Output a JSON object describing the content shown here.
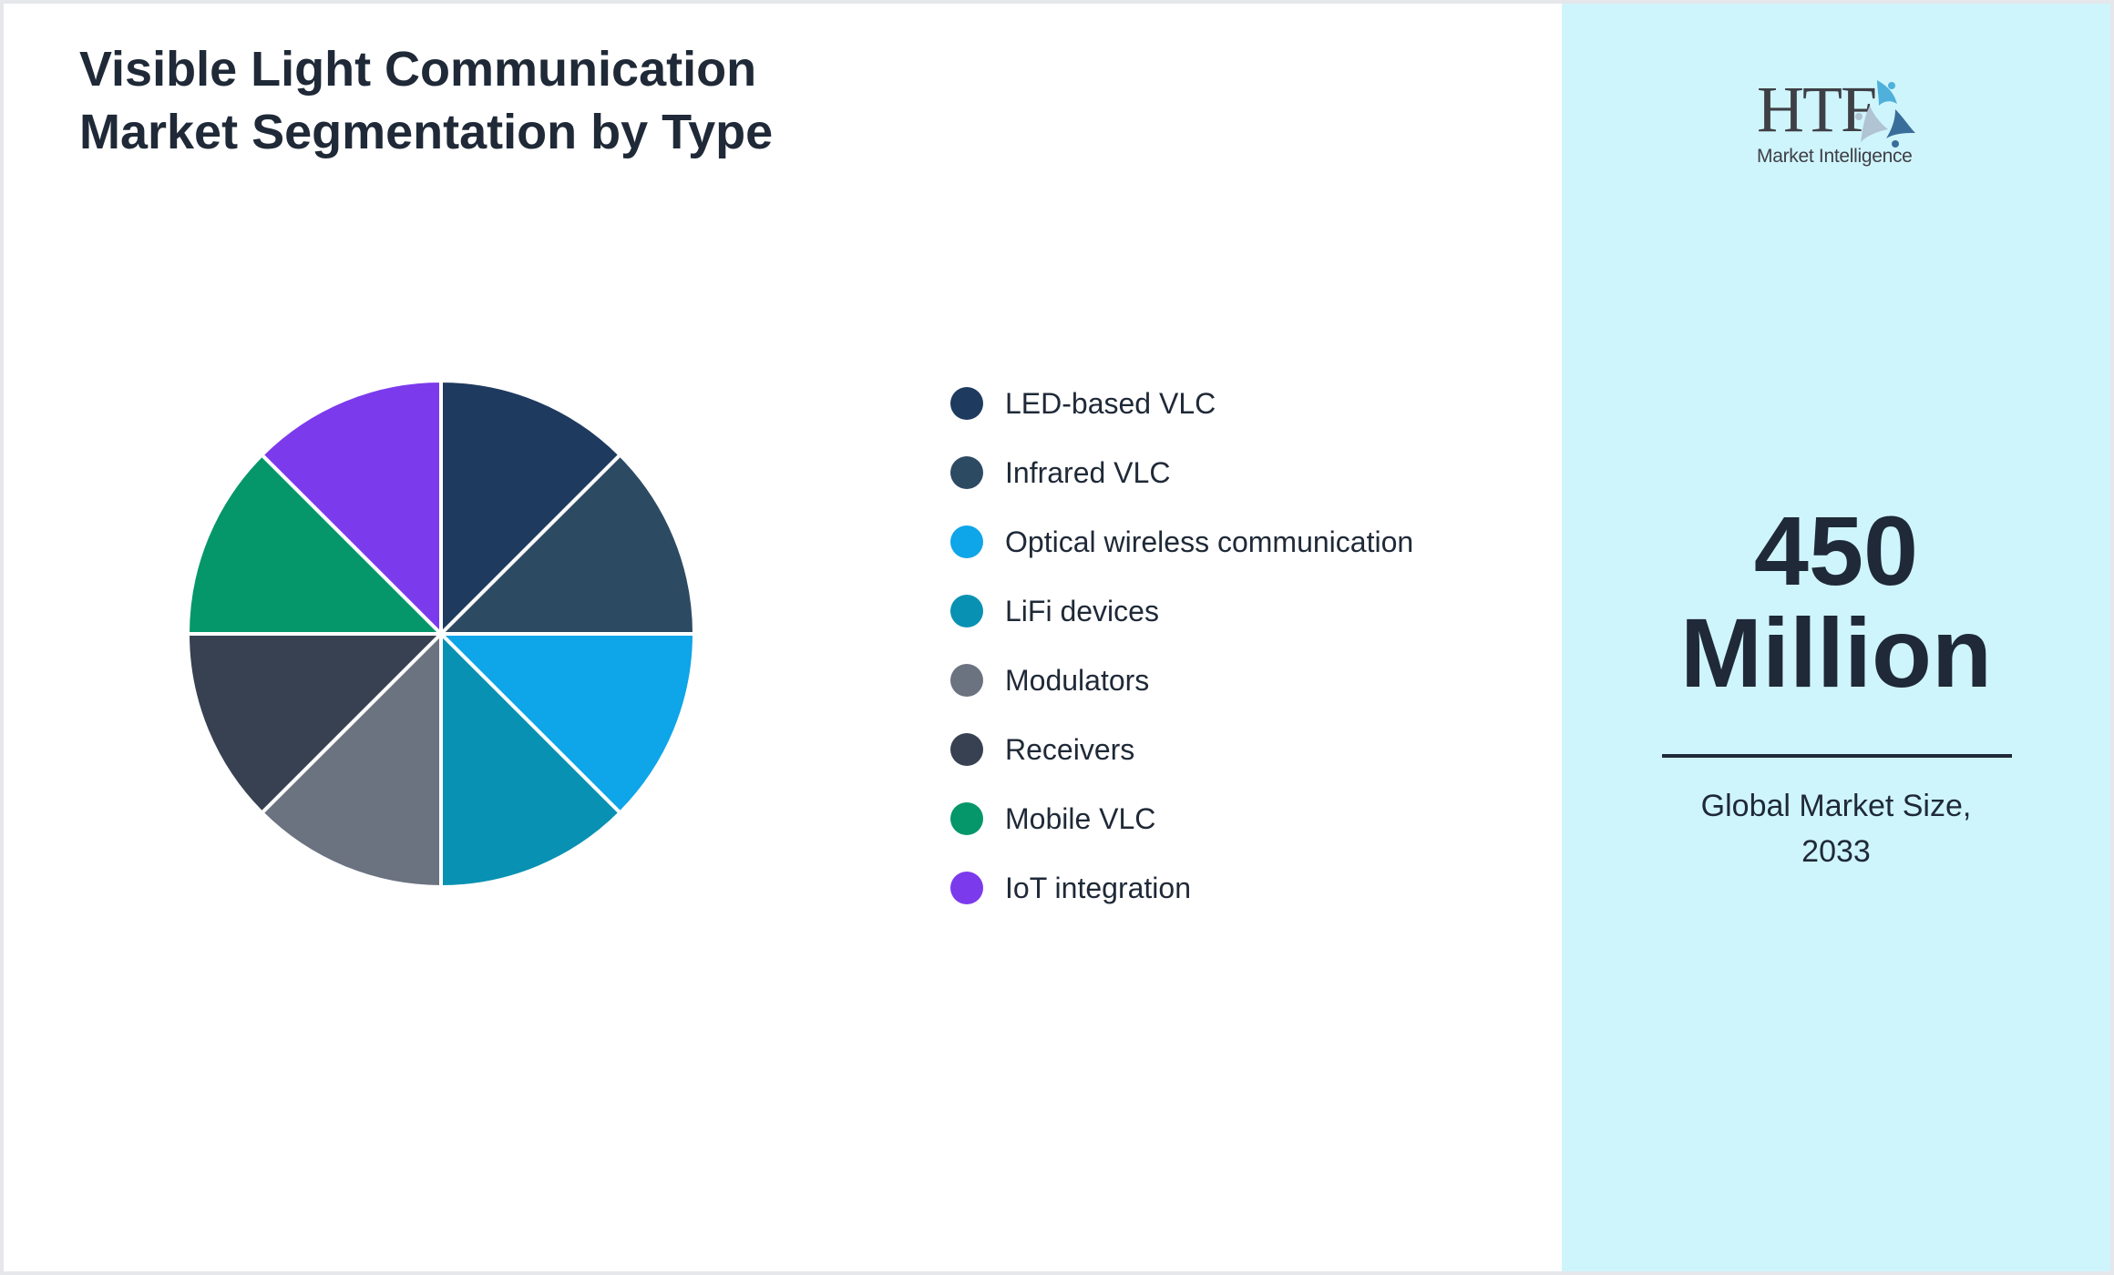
{
  "title": {
    "line1": "Visible Light Communication",
    "line2": "Market Segmentation by Type"
  },
  "logo": {
    "brand": "HTF",
    "tagline": "Market Intelligence"
  },
  "highlight": {
    "value_line1": "450",
    "value_line2": "Million",
    "caption_line1": "Global Market Size,",
    "caption_line2": "2033"
  },
  "colors": {
    "panel_bg": "#cff5fc",
    "text": "#1f2937"
  },
  "legend": [
    {
      "label": "LED-based VLC",
      "color": "#1e3a5f"
    },
    {
      "label": "Infrared VLC",
      "color": "#2d4a63"
    },
    {
      "label": "Optical wireless communication",
      "color": "#0ea5e9"
    },
    {
      "label": "LiFi devices",
      "color": "#0891b2"
    },
    {
      "label": "Modulators",
      "color": "#6b7280"
    },
    {
      "label": "Receivers",
      "color": "#374151"
    },
    {
      "label": "Mobile VLC",
      "color": "#059669"
    },
    {
      "label": "IoT integration",
      "color": "#7c3aed"
    }
  ],
  "chart_data": {
    "type": "pie",
    "title": "Visible Light Communication Market Segmentation by Type",
    "categories": [
      "LED-based VLC",
      "Infrared VLC",
      "Optical wireless communication",
      "LiFi devices",
      "Modulators",
      "Receivers",
      "Mobile VLC",
      "IoT integration"
    ],
    "values": [
      12.5,
      12.5,
      12.5,
      12.5,
      12.5,
      12.5,
      12.5,
      12.5
    ],
    "colors": [
      "#1e3a5f",
      "#2d4a63",
      "#0ea5e9",
      "#0891b2",
      "#6b7280",
      "#374151",
      "#059669",
      "#7c3aed"
    ],
    "start_angle": "12 o'clock, clockwise",
    "legend_position": "right",
    "data_labels": false
  }
}
